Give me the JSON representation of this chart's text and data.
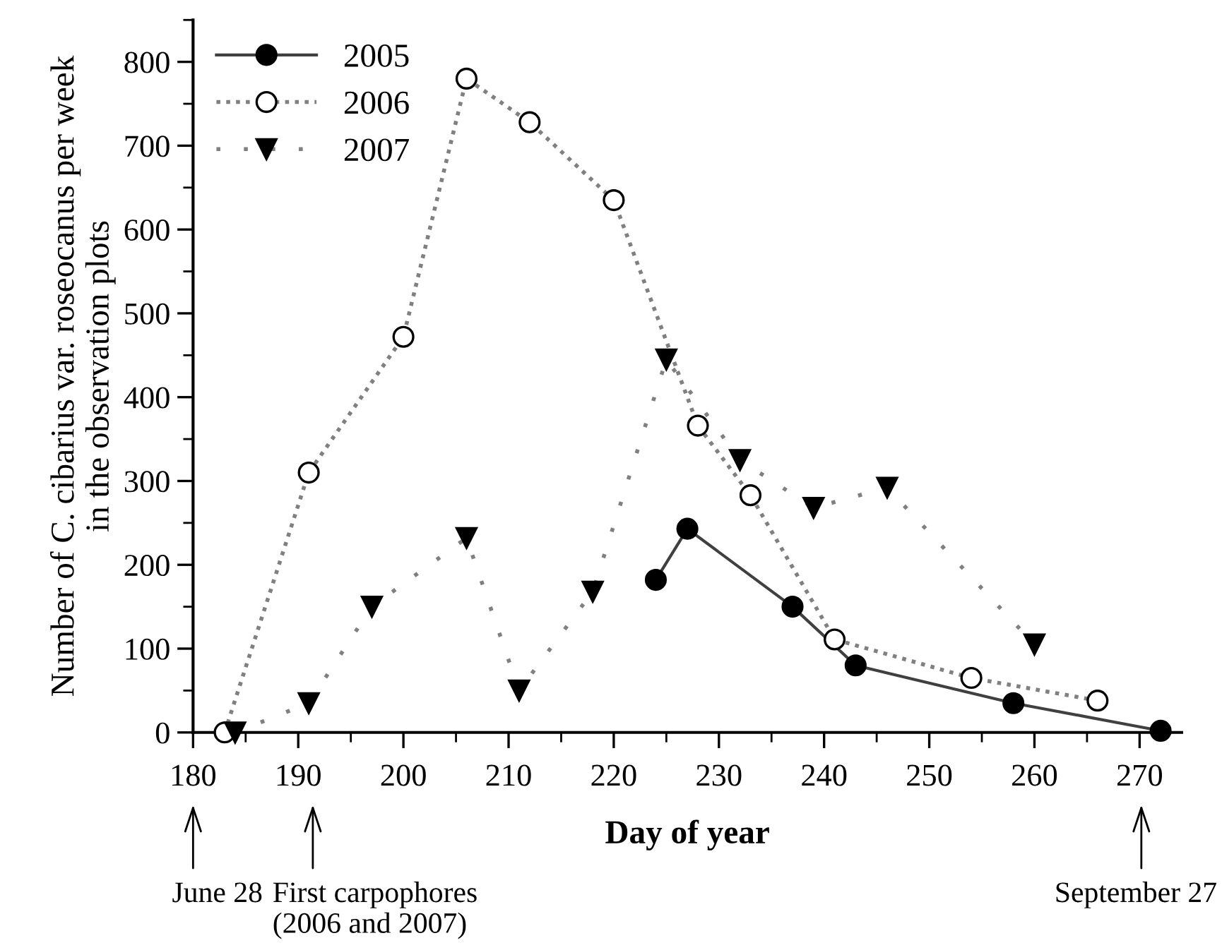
{
  "chart_data": {
    "type": "line",
    "xlabel": "Day of year",
    "ylabel": "Number of C. cibarius var. roseocanus per week\nin the observation plots",
    "xlim": [
      180,
      274
    ],
    "xticks": [
      180,
      190,
      200,
      210,
      220,
      230,
      240,
      250,
      260,
      270
    ],
    "ylim": [
      0,
      850
    ],
    "yticks": [
      0,
      100,
      200,
      300,
      400,
      500,
      600,
      700,
      800
    ],
    "grid": false,
    "legend": "top left",
    "series": [
      {
        "name": "2005",
        "color": "#000000",
        "marker": "circle",
        "line_style": "solid",
        "x": [
          224,
          227,
          237,
          243,
          258,
          272
        ],
        "values": [
          182,
          243,
          150,
          80,
          35,
          2
        ]
      },
      {
        "name": "2006",
        "color": "#000000",
        "marker": "circle",
        "line_style": "dotted",
        "x": [
          183,
          191,
          200,
          206,
          212,
          220,
          228,
          233,
          241,
          254,
          266
        ],
        "values": [
          0,
          310,
          472,
          780,
          728,
          635,
          366,
          283,
          111,
          65,
          38
        ]
      },
      {
        "name": "2007",
        "color": "#000000",
        "marker": "triangle",
        "line_style": "dashed",
        "x": [
          184,
          191,
          197,
          206,
          211,
          218,
          225,
          232,
          239,
          246,
          260
        ],
        "values": [
          0,
          35,
          150,
          232,
          50,
          168,
          445,
          325,
          268,
          292,
          105
        ]
      }
    ],
    "annotations": [
      "June 28",
      "First carpophores\n(2006 and 2007)",
      "September 27"
    ]
  }
}
